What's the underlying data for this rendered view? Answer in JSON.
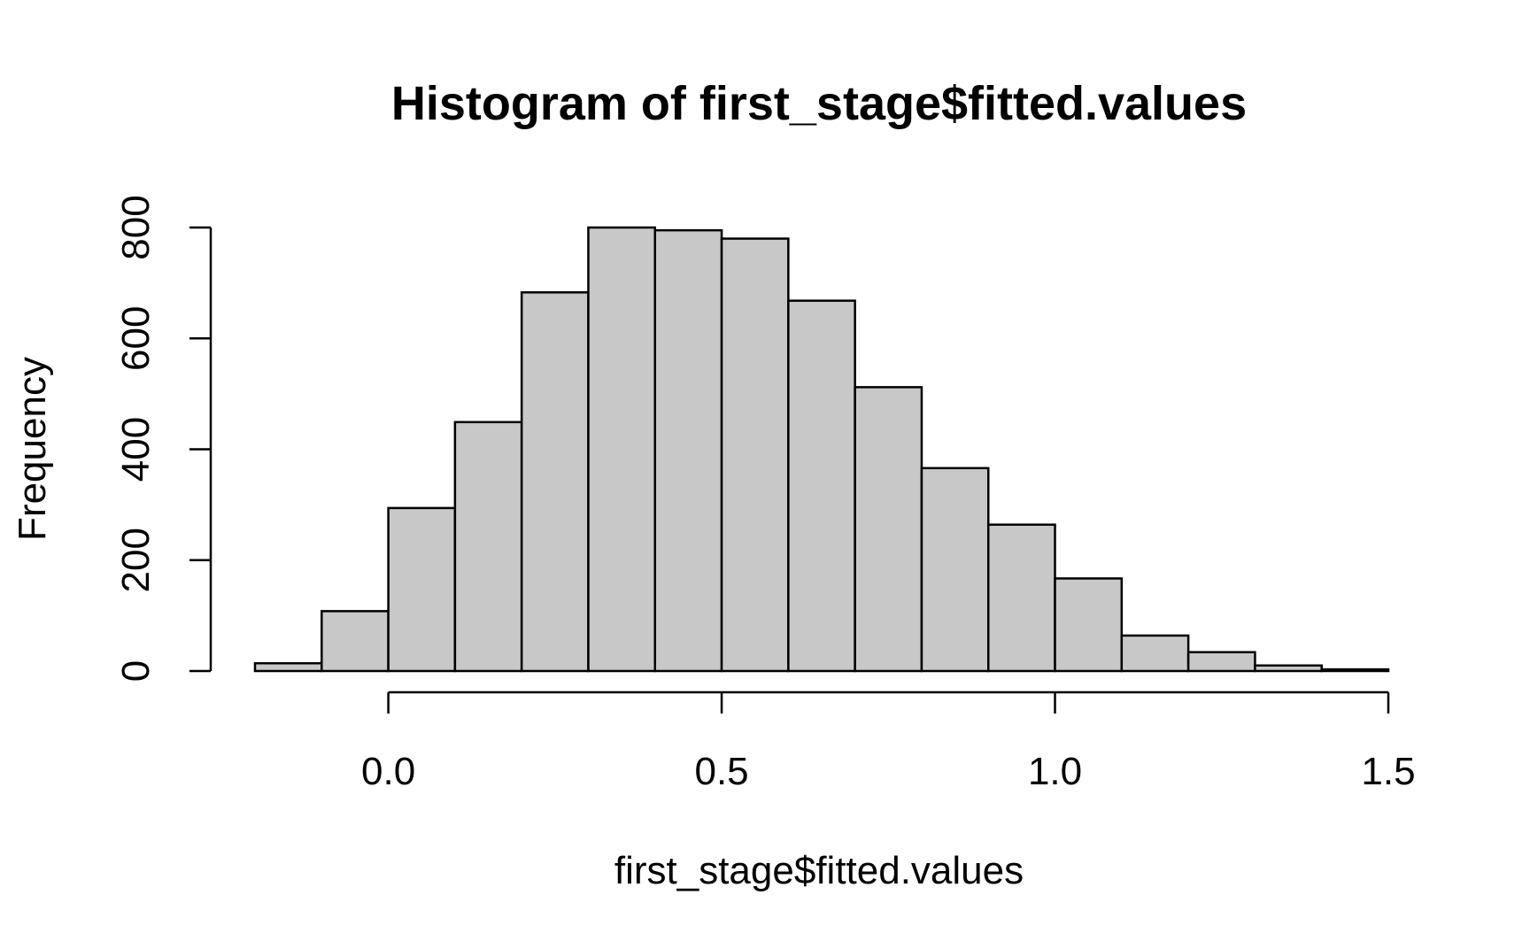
{
  "chart_data": {
    "type": "bar",
    "subtype": "histogram",
    "title": "Histogram of first_stage$fitted.values",
    "xlabel": "first_stage$fitted.values",
    "ylabel": "Frequency",
    "bin_edges": [
      -0.2,
      -0.1,
      0.0,
      0.1,
      0.2,
      0.3,
      0.4,
      0.5,
      0.6,
      0.7,
      0.8,
      0.9,
      1.0,
      1.1,
      1.2,
      1.3,
      1.4,
      1.5
    ],
    "values": [
      14,
      108,
      294,
      449,
      683,
      800,
      795,
      780,
      668,
      512,
      366,
      264,
      167,
      64,
      34,
      10,
      3
    ],
    "xlim": [
      -0.2,
      1.5
    ],
    "ylim": [
      0,
      800
    ],
    "x_ticks": [
      0.0,
      0.5,
      1.0,
      1.5
    ],
    "x_tick_labels": [
      "0.0",
      "0.5",
      "1.0",
      "1.5"
    ],
    "y_ticks": [
      0,
      200,
      400,
      600,
      800
    ],
    "y_tick_labels": [
      "0",
      "200",
      "400",
      "600",
      "800"
    ],
    "grid": false,
    "legend": "none",
    "bar_fill": "#c8c8c8",
    "bar_stroke": "#000000"
  }
}
